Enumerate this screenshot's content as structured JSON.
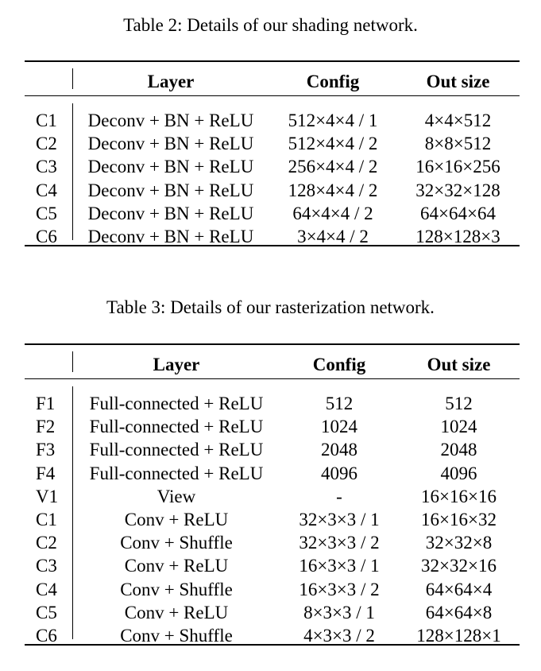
{
  "table2": {
    "caption": "Table 2: Details of our shading network.",
    "headers": {
      "layer": "Layer",
      "config": "Config",
      "out_size": "Out size"
    },
    "rows": [
      {
        "id": "C1",
        "layer": "Deconv + BN + ReLU",
        "config": "512×4×4 / 1",
        "out_size": "4×4×512"
      },
      {
        "id": "C2",
        "layer": "Deconv + BN + ReLU",
        "config": "512×4×4 / 2",
        "out_size": "8×8×512"
      },
      {
        "id": "C3",
        "layer": "Deconv + BN + ReLU",
        "config": "256×4×4 / 2",
        "out_size": "16×16×256"
      },
      {
        "id": "C4",
        "layer": "Deconv + BN + ReLU",
        "config": "128×4×4 / 2",
        "out_size": "32×32×128"
      },
      {
        "id": "C5",
        "layer": "Deconv + BN + ReLU",
        "config": "64×4×4 / 2",
        "out_size": "64×64×64"
      },
      {
        "id": "C6",
        "layer": "Deconv + BN + ReLU",
        "config": "3×4×4 / 2",
        "out_size": "128×128×3"
      }
    ]
  },
  "table3": {
    "caption": "Table 3: Details of our rasterization network.",
    "headers": {
      "layer": "Layer",
      "config": "Config",
      "out_size": "Out size"
    },
    "rows": [
      {
        "id": "F1",
        "layer": "Full-connected + ReLU",
        "config": "512",
        "out_size": "512"
      },
      {
        "id": "F2",
        "layer": "Full-connected + ReLU",
        "config": "1024",
        "out_size": "1024"
      },
      {
        "id": "F3",
        "layer": "Full-connected + ReLU",
        "config": "2048",
        "out_size": "2048"
      },
      {
        "id": "F4",
        "layer": "Full-connected + ReLU",
        "config": "4096",
        "out_size": "4096"
      },
      {
        "id": "V1",
        "layer": "View",
        "config": "-",
        "out_size": "16×16×16"
      },
      {
        "id": "C1",
        "layer": "Conv + ReLU",
        "config": "32×3×3 / 1",
        "out_size": "16×16×32"
      },
      {
        "id": "C2",
        "layer": "Conv + Shuffle",
        "config": "32×3×3 / 2",
        "out_size": "32×32×8"
      },
      {
        "id": "C3",
        "layer": "Conv + ReLU",
        "config": "16×3×3 / 1",
        "out_size": "32×32×16"
      },
      {
        "id": "C4",
        "layer": "Conv + Shuffle",
        "config": "16×3×3 / 2",
        "out_size": "64×64×4"
      },
      {
        "id": "C5",
        "layer": "Conv + ReLU",
        "config": "8×3×3 / 1",
        "out_size": "64×64×8"
      },
      {
        "id": "C6",
        "layer": "Conv + Shuffle",
        "config": "4×3×3 / 2",
        "out_size": "128×128×1"
      }
    ]
  }
}
